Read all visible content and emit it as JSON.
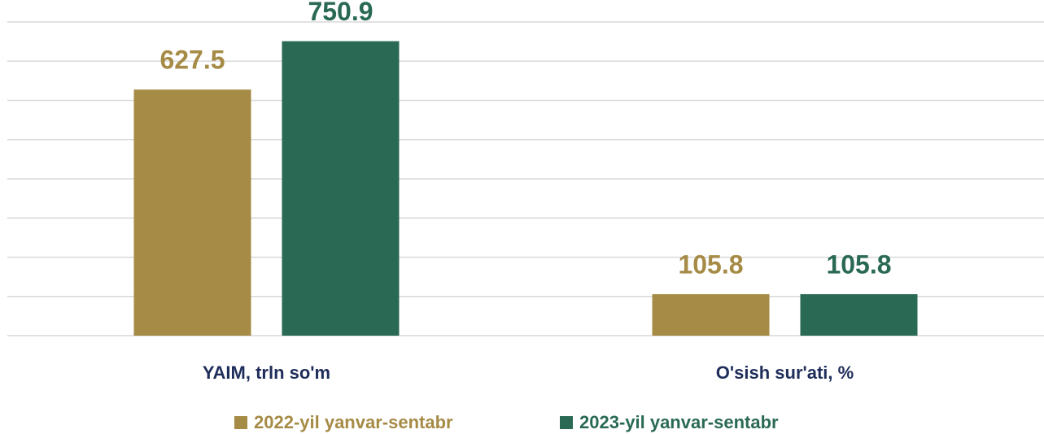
{
  "chart_data": {
    "type": "bar",
    "categories": [
      "YAIM, trln so'm",
      "O'sish sur'ati, %"
    ],
    "series": [
      {
        "name": "2022-yil yanvar-sentabr",
        "color": "#a68b46",
        "values": [
          627.5,
          105.8
        ]
      },
      {
        "name": "2023-yil yanvar-sentabr",
        "color": "#2a6a55",
        "values": [
          750.9,
          105.8
        ]
      }
    ],
    "ylim": [
      0,
      800
    ],
    "yticks": [
      0,
      100,
      200,
      300,
      400,
      500,
      600,
      700,
      800
    ],
    "grid": true,
    "legend": "bottom"
  }
}
